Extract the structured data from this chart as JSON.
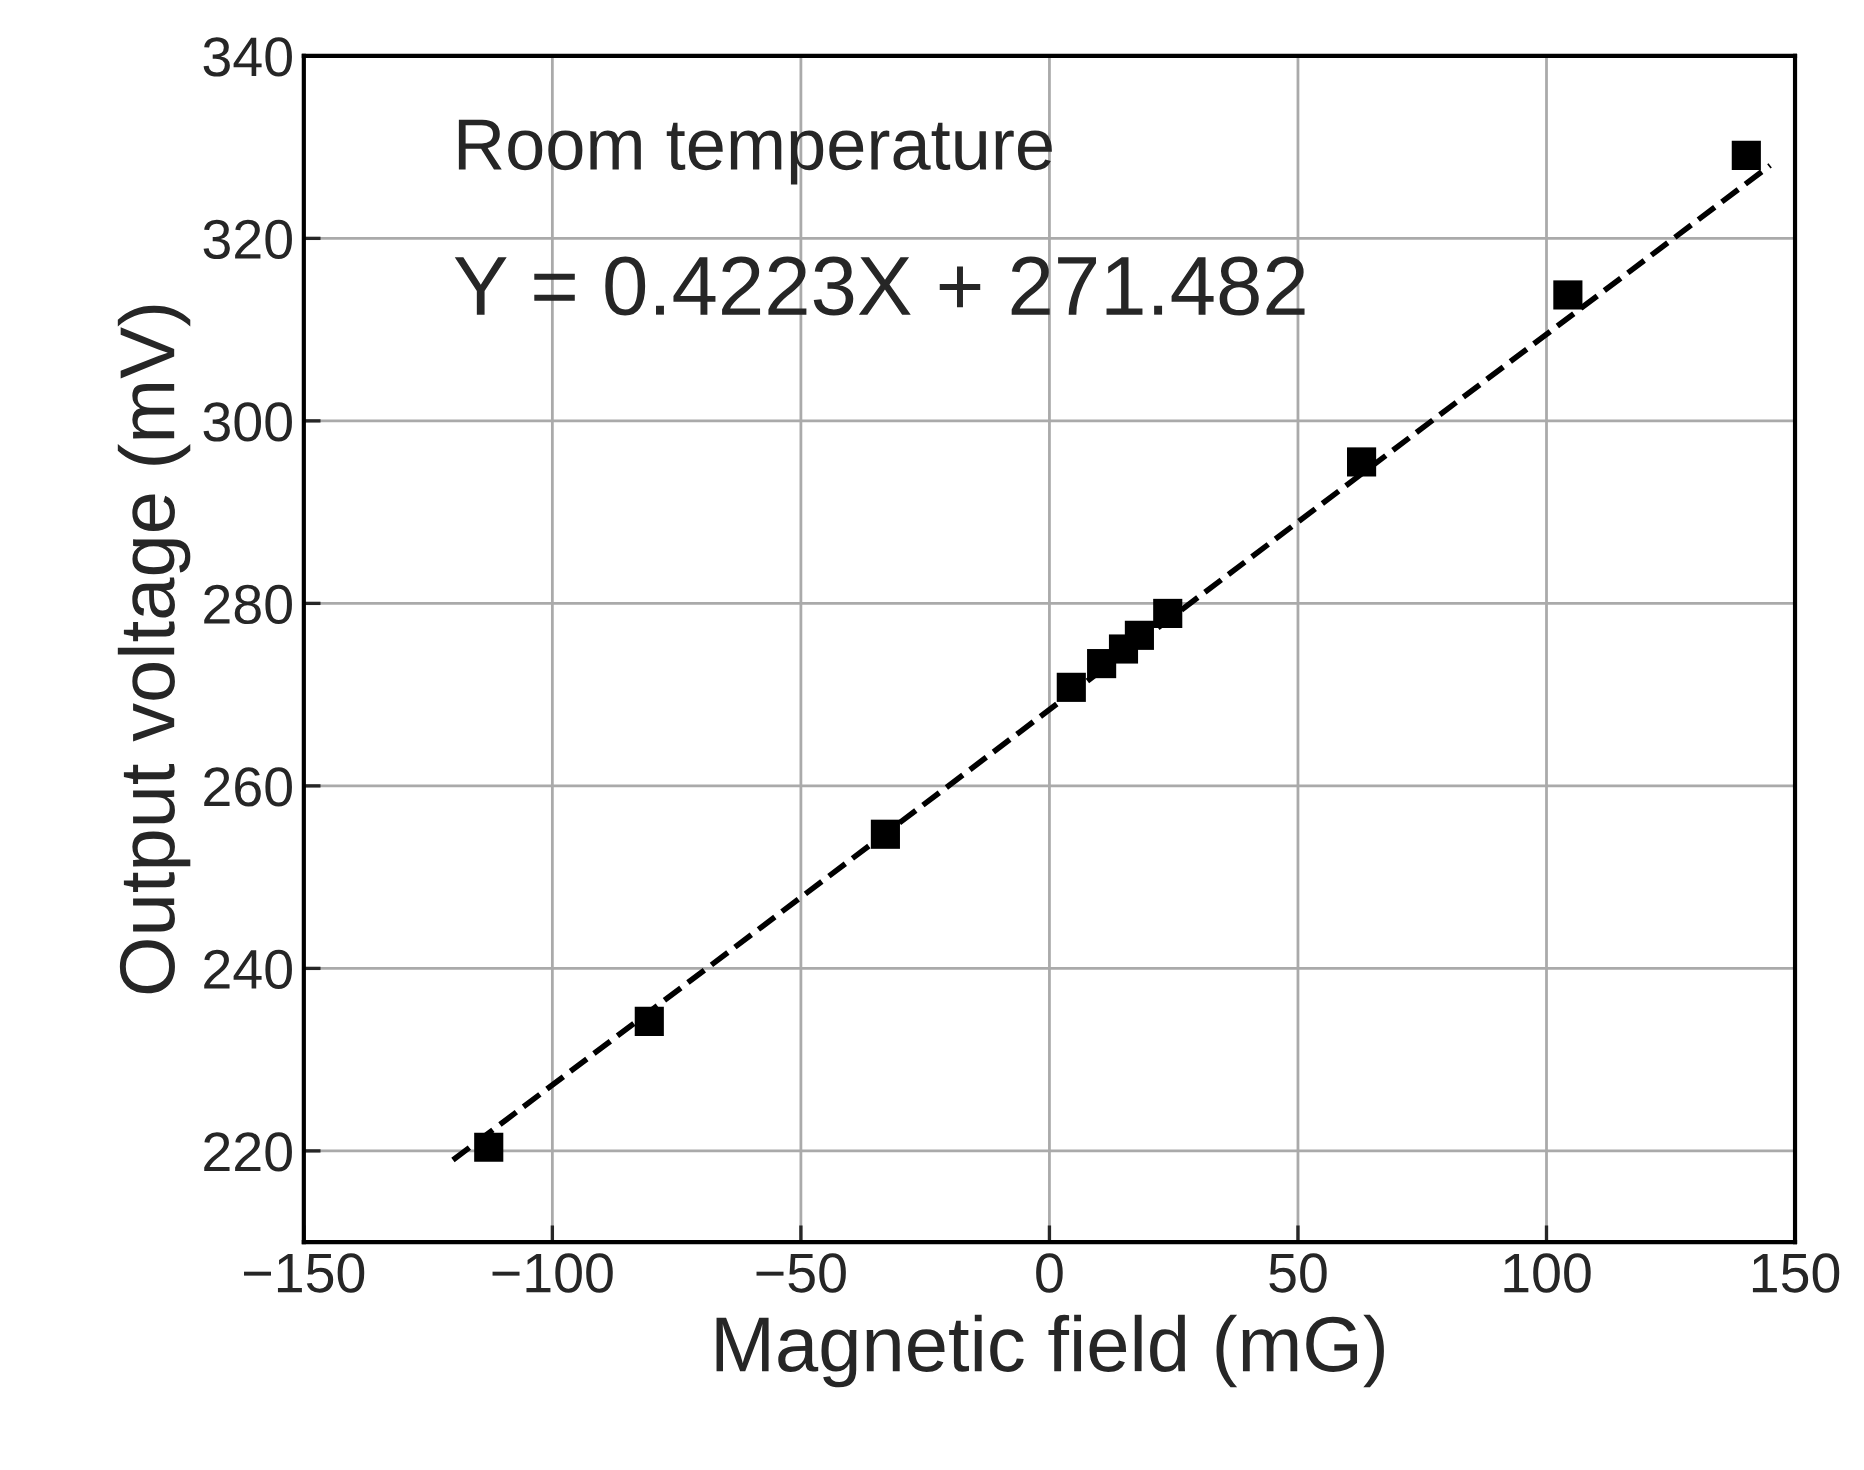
{
  "chart_data": {
    "type": "scatter",
    "xlabel": "Magnetic field (mG)",
    "ylabel": "Output voltage (mV)",
    "annotations": [
      "Room temperature",
      "Y = 0.4223X + 271.482"
    ],
    "x": [
      -112.8,
      -80.5,
      -33,
      4.4,
      10.5,
      14.9,
      18.1,
      23.8,
      62.8,
      104.3,
      140.2
    ],
    "series": [
      {
        "color": "#000000",
        "marker": "square",
        "values": [
          220.4,
          234.2,
          254.7,
          270.8,
          273.4,
          275.0,
          276.5,
          278.9,
          295.5,
          313.8,
          329.1
        ]
      },
      {
        "type": "line",
        "color": "#000000",
        "line_style": "dashed",
        "x": [
          -120,
          145
        ],
        "values": [
          219,
          328
        ]
      }
    ],
    "xlim": [
      -150,
      150
    ],
    "ylim": [
      210,
      340
    ],
    "xticks": [
      {
        "value": -150,
        "label": "−150"
      },
      {
        "value": -100,
        "label": "−100"
      },
      {
        "value": -50,
        "label": "−50"
      },
      0,
      50,
      100,
      150
    ],
    "yticks": [
      220,
      240,
      260,
      280,
      300,
      320,
      340
    ],
    "grid": true
  }
}
